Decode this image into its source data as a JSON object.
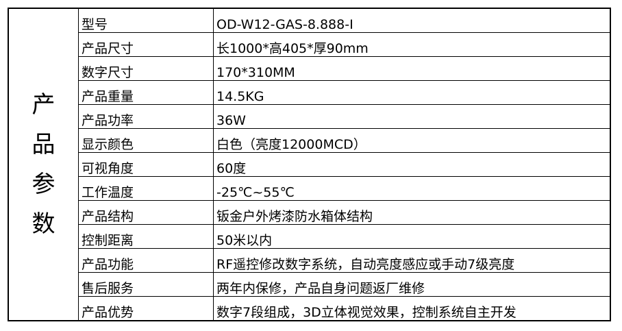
{
  "side_label": [
    "产",
    "品",
    "参",
    "数"
  ],
  "rows": [
    {
      "label": "型号",
      "value": "OD-W12-GAS-8.888-I"
    },
    {
      "label": "产品尺寸",
      "value": "长1000*高405*厚90mm"
    },
    {
      "label": "数字尺寸",
      "value": "170*310MM"
    },
    {
      "label": "产品重量",
      "value": "14.5KG"
    },
    {
      "label": "产品功率",
      "value": "36W"
    },
    {
      "label": "显示颜色",
      "value": "白色（亮度12000MCD）"
    },
    {
      "label": "可视角度",
      "value": "60度"
    },
    {
      "label": "工作温度",
      "value": "-25℃~55℃"
    },
    {
      "label": "产品结构",
      "value": "钣金户外烤漆防水箱体结构"
    },
    {
      "label": "控制距离",
      "value": "50米以内"
    },
    {
      "label": "产品功能",
      "value": "RF遥控修改数字系统，自动亮度感应或手动7级亮度"
    },
    {
      "label": "售后服务",
      "value": "两年内保修，产品自身问题返厂维修"
    },
    {
      "label": "产品优势",
      "value": "数字7段组成，3D立体视觉效果，控制系统自主开发"
    }
  ]
}
